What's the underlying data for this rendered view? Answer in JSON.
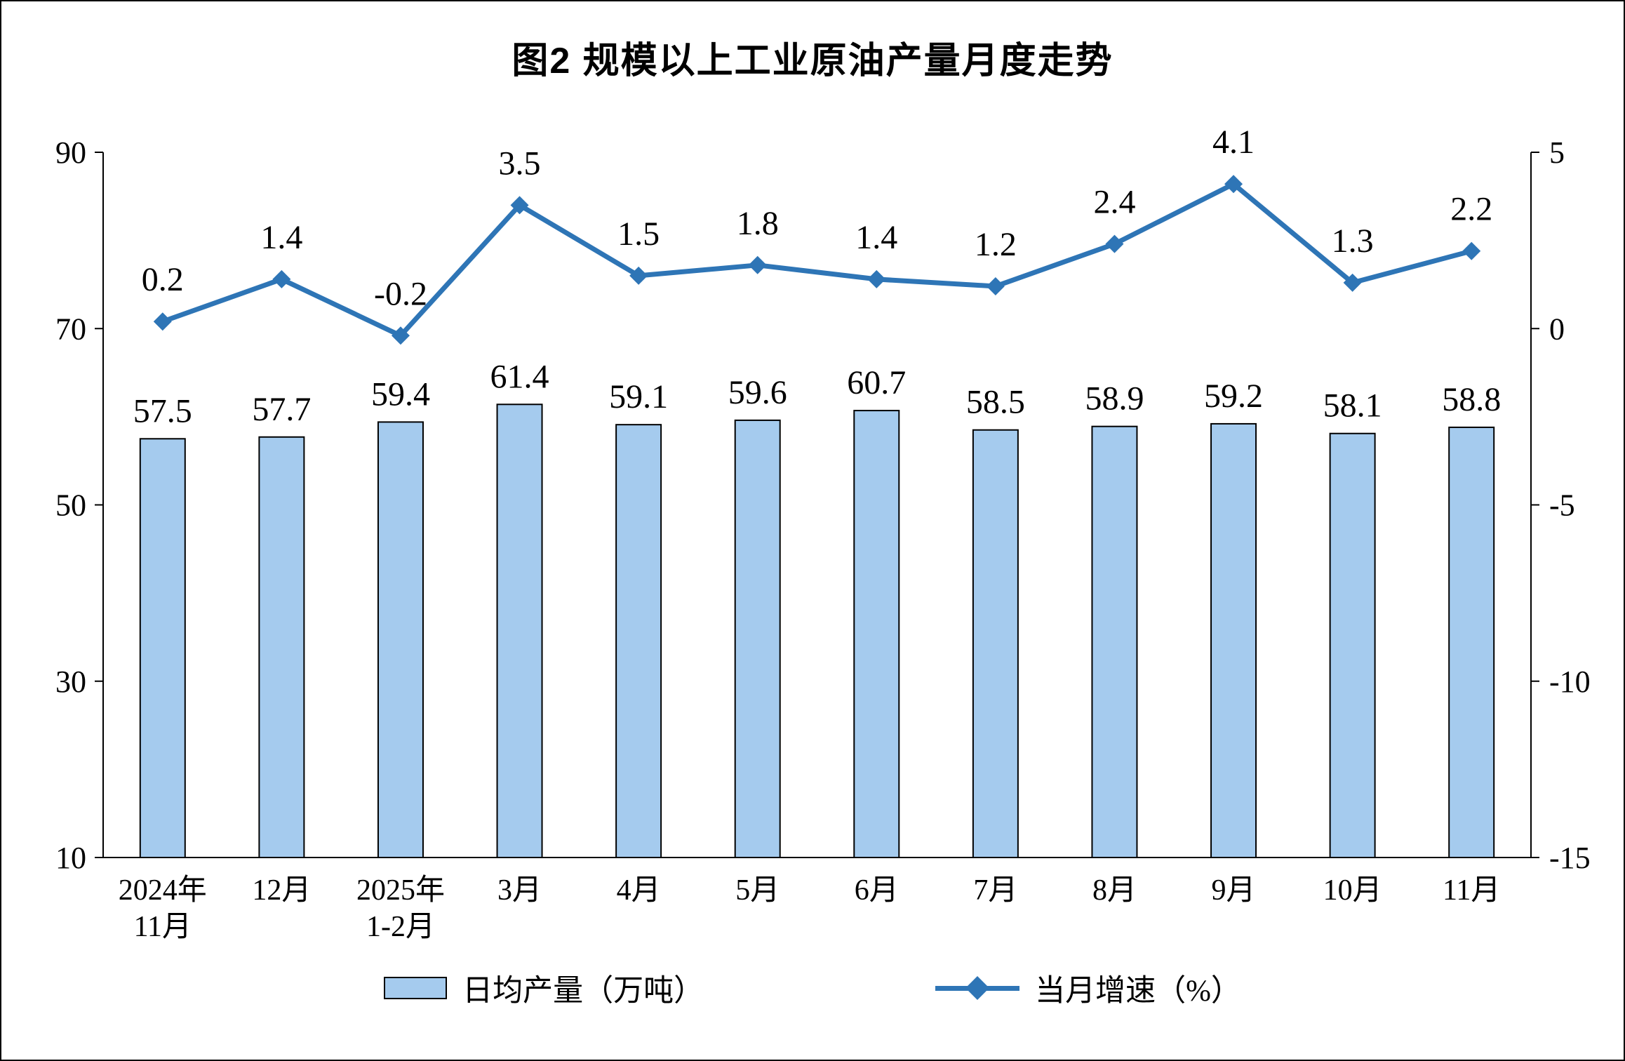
{
  "title": "图2 规模以上工业原油产量月度走势",
  "colors": {
    "bar_fill": "#A5CBEE",
    "bar_stroke": "#000000",
    "line_color": "#2E75B6",
    "axis_color": "#000000"
  },
  "chart_data": {
    "type": "bar",
    "combo": "bar+line",
    "title": "图2 规模以上工业原油产量月度走势",
    "categories": [
      "2024年\n11月",
      "12月",
      "2025年\n1-2月",
      "3月",
      "4月",
      "5月",
      "6月",
      "7月",
      "8月",
      "9月",
      "10月",
      "11月"
    ],
    "series": [
      {
        "name": "日均产量（万吨）",
        "type": "bar",
        "axis": "left",
        "values": [
          57.5,
          57.7,
          59.4,
          61.4,
          59.1,
          59.6,
          60.7,
          58.5,
          58.9,
          59.2,
          58.1,
          58.8
        ]
      },
      {
        "name": "当月增速（%）",
        "type": "line",
        "axis": "right",
        "marker": "diamond",
        "values": [
          0.2,
          1.4,
          -0.2,
          3.5,
          1.5,
          1.8,
          1.4,
          1.2,
          2.4,
          4.1,
          1.3,
          2.2
        ]
      }
    ],
    "left_axis": {
      "min": 10,
      "max": 90,
      "ticks": [
        90,
        70,
        50,
        30,
        10
      ]
    },
    "right_axis": {
      "min": -15,
      "max": 5,
      "ticks": [
        5,
        0,
        -5,
        -10,
        -15
      ]
    },
    "grid": false,
    "legend_position": "bottom"
  },
  "legend": {
    "bar_label": "日均产量（万吨）",
    "line_label": "当月增速（%）"
  }
}
